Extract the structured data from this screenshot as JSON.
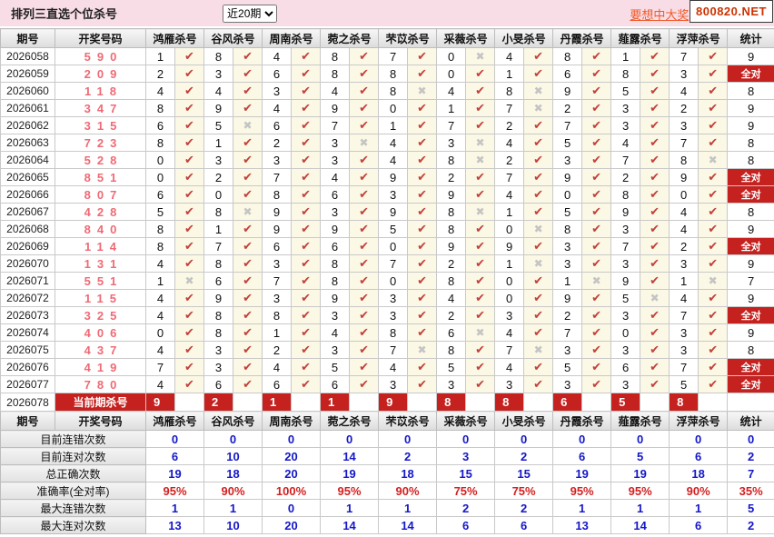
{
  "colors": {
    "accent": "#c5211f",
    "check": "#c2403a",
    "cross": "#c4c4c4",
    "draw_number": "#ef6a75",
    "stat_blue": "#1417c8",
    "stat_red": "#d42020",
    "topbar_bg": "#f8dde6",
    "promo": "#f05a28",
    "site": "#cc3300",
    "mark_bg": "#fbf8e6"
  },
  "icons": {
    "check-icon": "✔",
    "cross-icon": "✖"
  },
  "header": {
    "title": "排列三直选个位杀号",
    "range_select": {
      "value": "近20期"
    },
    "promo_text": "要想中大奖,",
    "site": "800820.NET"
  },
  "table": {
    "col_headers": {
      "period": "期号",
      "draw": "开奖号码",
      "experts": [
        "鸿雁杀号",
        "谷风杀号",
        "周南杀号",
        "菀之杀号",
        "芣苡杀号",
        "采薇杀号",
        "小旻杀号",
        "丹霞杀号",
        "薤露杀号",
        "浮萍杀号"
      ],
      "stat": "统计"
    },
    "all_correct_label": "全对",
    "rows": [
      {
        "period": "2026058",
        "draw": "590",
        "cells": [
          [
            "1",
            true
          ],
          [
            "8",
            true
          ],
          [
            "4",
            true
          ],
          [
            "8",
            true
          ],
          [
            "7",
            true
          ],
          [
            "0",
            false
          ],
          [
            "4",
            true
          ],
          [
            "8",
            true
          ],
          [
            "1",
            true
          ],
          [
            "7",
            true
          ]
        ],
        "stat": "9"
      },
      {
        "period": "2026059",
        "draw": "209",
        "cells": [
          [
            "2",
            true
          ],
          [
            "3",
            true
          ],
          [
            "6",
            true
          ],
          [
            "8",
            true
          ],
          [
            "8",
            true
          ],
          [
            "0",
            true
          ],
          [
            "1",
            true
          ],
          [
            "6",
            true
          ],
          [
            "8",
            true
          ],
          [
            "3",
            true
          ]
        ],
        "stat": "全对"
      },
      {
        "period": "2026060",
        "draw": "118",
        "cells": [
          [
            "4",
            true
          ],
          [
            "4",
            true
          ],
          [
            "3",
            true
          ],
          [
            "4",
            true
          ],
          [
            "8",
            false
          ],
          [
            "4",
            true
          ],
          [
            "8",
            false
          ],
          [
            "9",
            true
          ],
          [
            "5",
            true
          ],
          [
            "4",
            true
          ]
        ],
        "stat": "8"
      },
      {
        "period": "2026061",
        "draw": "347",
        "cells": [
          [
            "8",
            true
          ],
          [
            "9",
            true
          ],
          [
            "4",
            true
          ],
          [
            "9",
            true
          ],
          [
            "0",
            true
          ],
          [
            "1",
            true
          ],
          [
            "7",
            false
          ],
          [
            "2",
            true
          ],
          [
            "3",
            true
          ],
          [
            "2",
            true
          ]
        ],
        "stat": "9"
      },
      {
        "period": "2026062",
        "draw": "315",
        "cells": [
          [
            "6",
            true
          ],
          [
            "5",
            false
          ],
          [
            "6",
            true
          ],
          [
            "7",
            true
          ],
          [
            "1",
            true
          ],
          [
            "7",
            true
          ],
          [
            "2",
            true
          ],
          [
            "7",
            true
          ],
          [
            "3",
            true
          ],
          [
            "3",
            true
          ]
        ],
        "stat": "9"
      },
      {
        "period": "2026063",
        "draw": "723",
        "cells": [
          [
            "8",
            true
          ],
          [
            "1",
            true
          ],
          [
            "2",
            true
          ],
          [
            "3",
            false
          ],
          [
            "4",
            true
          ],
          [
            "3",
            false
          ],
          [
            "4",
            true
          ],
          [
            "5",
            true
          ],
          [
            "4",
            true
          ],
          [
            "7",
            true
          ]
        ],
        "stat": "8"
      },
      {
        "period": "2026064",
        "draw": "528",
        "cells": [
          [
            "0",
            true
          ],
          [
            "3",
            true
          ],
          [
            "3",
            true
          ],
          [
            "3",
            true
          ],
          [
            "4",
            true
          ],
          [
            "8",
            false
          ],
          [
            "2",
            true
          ],
          [
            "3",
            true
          ],
          [
            "7",
            true
          ],
          [
            "8",
            false
          ]
        ],
        "stat": "8"
      },
      {
        "period": "2026065",
        "draw": "851",
        "cells": [
          [
            "0",
            true
          ],
          [
            "2",
            true
          ],
          [
            "7",
            true
          ],
          [
            "4",
            true
          ],
          [
            "9",
            true
          ],
          [
            "2",
            true
          ],
          [
            "7",
            true
          ],
          [
            "9",
            true
          ],
          [
            "2",
            true
          ],
          [
            "9",
            true
          ]
        ],
        "stat": "全对"
      },
      {
        "period": "2026066",
        "draw": "807",
        "cells": [
          [
            "6",
            true
          ],
          [
            "0",
            true
          ],
          [
            "8",
            true
          ],
          [
            "6",
            true
          ],
          [
            "3",
            true
          ],
          [
            "9",
            true
          ],
          [
            "4",
            true
          ],
          [
            "0",
            true
          ],
          [
            "8",
            true
          ],
          [
            "0",
            true
          ]
        ],
        "stat": "全对"
      },
      {
        "period": "2026067",
        "draw": "428",
        "cells": [
          [
            "5",
            true
          ],
          [
            "8",
            false
          ],
          [
            "9",
            true
          ],
          [
            "3",
            true
          ],
          [
            "9",
            true
          ],
          [
            "8",
            false
          ],
          [
            "1",
            true
          ],
          [
            "5",
            true
          ],
          [
            "9",
            true
          ],
          [
            "4",
            true
          ]
        ],
        "stat": "8"
      },
      {
        "period": "2026068",
        "draw": "840",
        "cells": [
          [
            "8",
            true
          ],
          [
            "1",
            true
          ],
          [
            "9",
            true
          ],
          [
            "9",
            true
          ],
          [
            "5",
            true
          ],
          [
            "8",
            true
          ],
          [
            "0",
            false
          ],
          [
            "8",
            true
          ],
          [
            "3",
            true
          ],
          [
            "4",
            true
          ]
        ],
        "stat": "9"
      },
      {
        "period": "2026069",
        "draw": "114",
        "cells": [
          [
            "8",
            true
          ],
          [
            "7",
            true
          ],
          [
            "6",
            true
          ],
          [
            "6",
            true
          ],
          [
            "0",
            true
          ],
          [
            "9",
            true
          ],
          [
            "9",
            true
          ],
          [
            "3",
            true
          ],
          [
            "7",
            true
          ],
          [
            "2",
            true
          ]
        ],
        "stat": "全对"
      },
      {
        "period": "2026070",
        "draw": "131",
        "cells": [
          [
            "4",
            true
          ],
          [
            "8",
            true
          ],
          [
            "3",
            true
          ],
          [
            "8",
            true
          ],
          [
            "7",
            true
          ],
          [
            "2",
            true
          ],
          [
            "1",
            false
          ],
          [
            "3",
            true
          ],
          [
            "3",
            true
          ],
          [
            "3",
            true
          ]
        ],
        "stat": "9"
      },
      {
        "period": "2026071",
        "draw": "551",
        "cells": [
          [
            "1",
            false
          ],
          [
            "6",
            true
          ],
          [
            "7",
            true
          ],
          [
            "8",
            true
          ],
          [
            "0",
            true
          ],
          [
            "8",
            true
          ],
          [
            "0",
            true
          ],
          [
            "1",
            false
          ],
          [
            "9",
            true
          ],
          [
            "1",
            false
          ]
        ],
        "stat": "7"
      },
      {
        "period": "2026072",
        "draw": "115",
        "cells": [
          [
            "4",
            true
          ],
          [
            "9",
            true
          ],
          [
            "3",
            true
          ],
          [
            "9",
            true
          ],
          [
            "3",
            true
          ],
          [
            "4",
            true
          ],
          [
            "0",
            true
          ],
          [
            "9",
            true
          ],
          [
            "5",
            false
          ],
          [
            "4",
            true
          ]
        ],
        "stat": "9"
      },
      {
        "period": "2026073",
        "draw": "325",
        "cells": [
          [
            "4",
            true
          ],
          [
            "8",
            true
          ],
          [
            "8",
            true
          ],
          [
            "3",
            true
          ],
          [
            "3",
            true
          ],
          [
            "2",
            true
          ],
          [
            "3",
            true
          ],
          [
            "2",
            true
          ],
          [
            "3",
            true
          ],
          [
            "7",
            true
          ]
        ],
        "stat": "全对"
      },
      {
        "period": "2026074",
        "draw": "406",
        "cells": [
          [
            "0",
            true
          ],
          [
            "8",
            true
          ],
          [
            "1",
            true
          ],
          [
            "4",
            true
          ],
          [
            "8",
            true
          ],
          [
            "6",
            false
          ],
          [
            "4",
            true
          ],
          [
            "7",
            true
          ],
          [
            "0",
            true
          ],
          [
            "3",
            true
          ]
        ],
        "stat": "9"
      },
      {
        "period": "2026075",
        "draw": "437",
        "cells": [
          [
            "4",
            true
          ],
          [
            "3",
            true
          ],
          [
            "2",
            true
          ],
          [
            "3",
            true
          ],
          [
            "7",
            false
          ],
          [
            "8",
            true
          ],
          [
            "7",
            false
          ],
          [
            "3",
            true
          ],
          [
            "3",
            true
          ],
          [
            "3",
            true
          ]
        ],
        "stat": "8"
      },
      {
        "period": "2026076",
        "draw": "419",
        "cells": [
          [
            "7",
            true
          ],
          [
            "3",
            true
          ],
          [
            "4",
            true
          ],
          [
            "5",
            true
          ],
          [
            "4",
            true
          ],
          [
            "5",
            true
          ],
          [
            "4",
            true
          ],
          [
            "5",
            true
          ],
          [
            "6",
            true
          ],
          [
            "7",
            true
          ]
        ],
        "stat": "全对"
      },
      {
        "period": "2026077",
        "draw": "780",
        "cells": [
          [
            "4",
            true
          ],
          [
            "6",
            true
          ],
          [
            "6",
            true
          ],
          [
            "6",
            true
          ],
          [
            "3",
            true
          ],
          [
            "3",
            true
          ],
          [
            "3",
            true
          ],
          [
            "3",
            true
          ],
          [
            "3",
            true
          ],
          [
            "5",
            true
          ]
        ],
        "stat": "全对"
      }
    ],
    "current_row": {
      "period": "2026078",
      "label": "当前期杀号",
      "kills": [
        "9",
        "2",
        "1",
        "1",
        "9",
        "8",
        "8",
        "6",
        "5",
        "8"
      ],
      "stat": ""
    },
    "stats_rows": [
      {
        "label": "目前连错次数",
        "values": [
          "0",
          "0",
          "0",
          "0",
          "0",
          "0",
          "0",
          "0",
          "0",
          "0"
        ],
        "stat": "0",
        "style": "blue"
      },
      {
        "label": "目前连对次数",
        "values": [
          "6",
          "10",
          "20",
          "14",
          "2",
          "3",
          "2",
          "6",
          "5",
          "6"
        ],
        "stat": "2",
        "style": "blue"
      },
      {
        "label": "总正确次数",
        "values": [
          "19",
          "18",
          "20",
          "19",
          "18",
          "15",
          "15",
          "19",
          "19",
          "18"
        ],
        "stat": "7",
        "style": "blue"
      },
      {
        "label": "准确率(全对率)",
        "values": [
          "95%",
          "90%",
          "100%",
          "95%",
          "90%",
          "75%",
          "75%",
          "95%",
          "95%",
          "90%"
        ],
        "stat": "35%",
        "style": "red"
      },
      {
        "label": "最大连错次数",
        "values": [
          "1",
          "1",
          "0",
          "1",
          "1",
          "2",
          "2",
          "1",
          "1",
          "1"
        ],
        "stat": "5",
        "style": "blue"
      },
      {
        "label": "最大连对次数",
        "values": [
          "13",
          "10",
          "20",
          "14",
          "14",
          "6",
          "6",
          "13",
          "14",
          "6"
        ],
        "stat": "2",
        "style": "blue"
      }
    ]
  }
}
